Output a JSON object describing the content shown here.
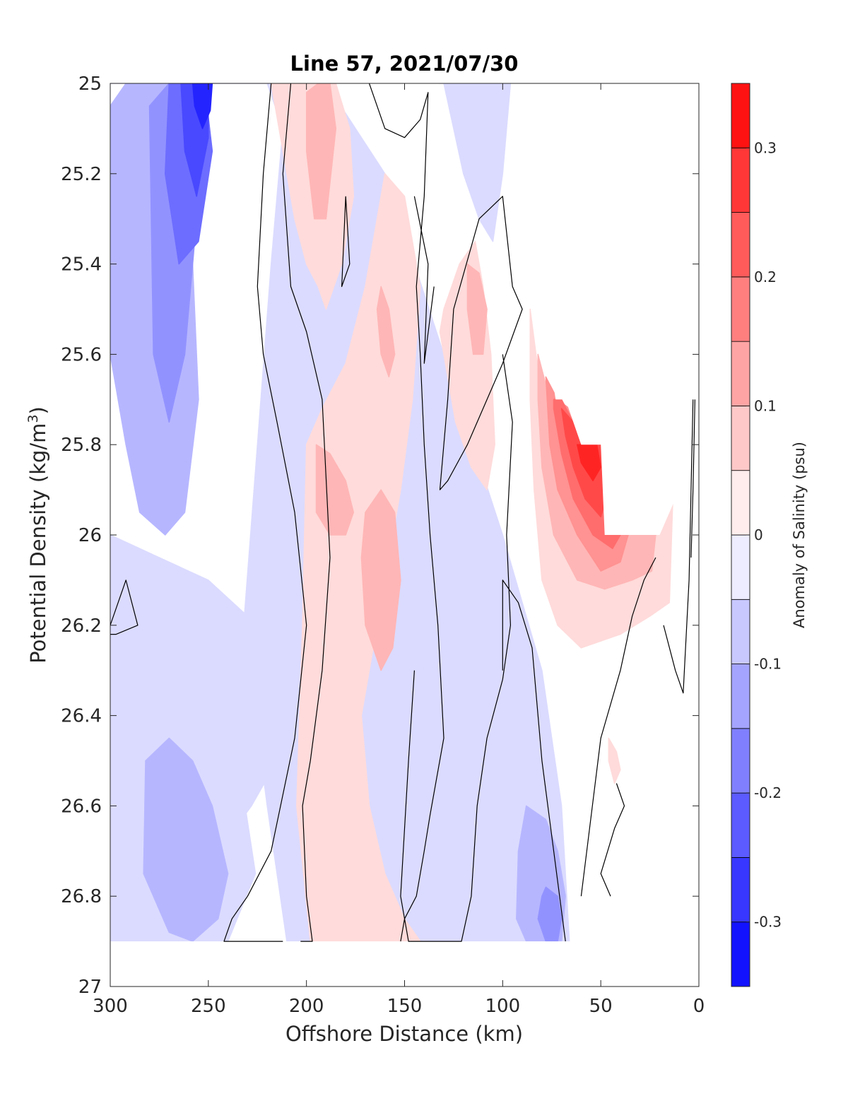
{
  "chart_data": {
    "type": "heatmap",
    "title": "Line 57, 2021/07/30",
    "xlabel": "Offshore Distance (km)",
    "ylabel": "Potential Density (kg/m",
    "ylabel_sup": "3",
    "ylabel_close": ")",
    "x_reversed": true,
    "y_reversed": true,
    "xlim": [
      0,
      300
    ],
    "ylim": [
      25,
      27
    ],
    "xticks": [
      300,
      250,
      200,
      150,
      100,
      50,
      0
    ],
    "xtick_labels": [
      "300",
      "250",
      "200",
      "150",
      "100",
      "50",
      "0"
    ],
    "yticks": [
      25,
      25.2,
      25.4,
      25.6,
      25.8,
      26,
      26.2,
      26.4,
      26.6,
      26.8,
      27
    ],
    "ytick_labels": [
      "25",
      "25.2",
      "25.4",
      "25.6",
      "25.8",
      "26",
      "26.2",
      "26.4",
      "26.6",
      "26.8",
      "27"
    ],
    "colorbar": {
      "label": "Anomaly of Salinity (psu)",
      "range": [
        -0.35,
        0.35
      ],
      "step": 0.05,
      "ticks": [
        -0.3,
        -0.2,
        -0.1,
        0,
        0.1,
        0.2,
        0.3
      ],
      "tick_labels": [
        "-0.3",
        "-0.2",
        "-0.1",
        "0",
        "0.1",
        "0.2",
        "0.3"
      ],
      "colormap": "blue-white-red",
      "color_negative": "#0000ff",
      "color_zero": "#ffffff",
      "color_positive": "#ff0000"
    },
    "regions": [
      {
        "value": -0.05,
        "x": [
          300,
          285,
          268,
          250,
          230,
          220,
          212,
          218,
          225,
          232,
          220,
          210,
          200,
          188,
          170,
          150,
          140,
          130,
          120,
          110,
          100,
          92,
          85,
          78,
          66,
          70,
          80,
          100,
          130,
          160,
          190,
          215,
          240,
          265,
          300
        ],
        "y": [
          25.0,
          25.0,
          25.0,
          25.0,
          25.0,
          25.0,
          25.1,
          25.4,
          25.8,
          26.2,
          26.6,
          26.9,
          26.9,
          26.9,
          26.9,
          26.9,
          26.9,
          26.9,
          26.9,
          26.9,
          26.9,
          26.9,
          26.9,
          26.9,
          26.9,
          26.6,
          26.3,
          26.0,
          25.6,
          25.2,
          25.0,
          25.0,
          25.0,
          25.0,
          25.0
        ]
      },
      {
        "value": -0.05,
        "x": [
          300,
          275,
          250,
          225,
          210,
          200,
          215,
          228,
          245,
          268,
          300
        ],
        "y": [
          26.0,
          26.05,
          26.1,
          26.2,
          26.3,
          26.4,
          26.5,
          26.6,
          26.7,
          26.8,
          26.9
        ]
      },
      {
        "value": -0.05,
        "x": [
          300,
          283,
          265,
          250,
          233,
          226,
          240,
          260,
          285,
          300
        ],
        "y": [
          26.2,
          26.25,
          26.35,
          26.45,
          26.55,
          26.75,
          26.9,
          26.9,
          26.9,
          26.9
        ]
      },
      {
        "value": -0.05,
        "x": [
          140,
          132,
          122,
          118,
          116,
          122,
          135,
          145,
          150,
          145,
          140
        ],
        "y": [
          26.6,
          26.55,
          26.5,
          26.55,
          26.7,
          26.85,
          26.9,
          26.9,
          26.75,
          26.65,
          26.6
        ]
      },
      {
        "value": -0.05,
        "x": [
          135,
          130,
          124,
          122,
          126,
          133,
          139,
          140,
          137,
          135
        ],
        "y": [
          26.15,
          26.2,
          26.3,
          26.4,
          26.5,
          26.55,
          26.45,
          26.3,
          26.2,
          26.15
        ]
      },
      {
        "value": -0.05,
        "x": [
          130,
          125,
          120,
          112,
          105,
          100,
          96,
          100,
          108,
          118,
          128,
          132,
          130
        ],
        "y": [
          25.0,
          25.1,
          25.2,
          25.3,
          25.35,
          25.2,
          25.0,
          25.0,
          25.0,
          25.0,
          25.0,
          25.0,
          25.0
        ]
      },
      {
        "value": -0.1,
        "x": [
          300,
          292,
          282,
          270,
          262,
          258,
          255,
          262,
          272,
          285,
          292,
          300
        ],
        "y": [
          25.05,
          25.0,
          25.0,
          25.0,
          25.1,
          25.4,
          25.7,
          25.95,
          26.0,
          25.95,
          25.8,
          25.6
        ]
      },
      {
        "value": -0.1,
        "x": [
          282,
          270,
          258,
          248,
          240,
          245,
          258,
          270,
          283
        ],
        "y": [
          26.5,
          26.45,
          26.5,
          26.6,
          26.75,
          26.85,
          26.9,
          26.88,
          26.75
        ]
      },
      {
        "value": -0.1,
        "x": [
          88,
          78,
          72,
          68,
          70,
          78,
          88,
          93,
          92,
          88
        ],
        "y": [
          26.6,
          26.63,
          26.7,
          26.8,
          26.9,
          26.9,
          26.9,
          26.85,
          26.7,
          26.6
        ]
      },
      {
        "value": -0.15,
        "x": [
          280,
          270,
          262,
          255,
          256,
          262,
          270,
          278
        ],
        "y": [
          25.05,
          25.0,
          25.0,
          25.05,
          25.3,
          25.6,
          25.75,
          25.6
        ]
      },
      {
        "value": -0.15,
        "x": [
          78,
          72,
          70,
          72,
          78,
          82,
          80,
          78
        ],
        "y": [
          26.78,
          26.8,
          26.85,
          26.9,
          26.9,
          26.85,
          26.8,
          26.78
        ]
      },
      {
        "value": -0.2,
        "x": [
          270,
          262,
          252,
          248,
          255,
          265,
          272
        ],
        "y": [
          25.0,
          25.0,
          25.0,
          25.15,
          25.35,
          25.4,
          25.2
        ]
      },
      {
        "value": -0.25,
        "x": [
          264,
          256,
          250,
          250,
          256,
          262
        ],
        "y": [
          25.0,
          25.0,
          25.0,
          25.12,
          25.25,
          25.15
        ]
      },
      {
        "value": -0.3,
        "x": [
          258,
          252,
          248,
          249,
          253,
          257
        ],
        "y": [
          25.0,
          25.0,
          25.0,
          25.06,
          25.1,
          25.05
        ]
      },
      {
        "value": 0.05,
        "x": [
          218,
          208,
          196,
          185,
          178,
          176,
          182,
          190,
          194,
          200,
          206,
          210,
          214,
          218
        ],
        "y": [
          25.0,
          25.0,
          25.0,
          25.0,
          25.1,
          25.25,
          25.4,
          25.5,
          25.45,
          25.4,
          25.3,
          25.2,
          25.1,
          25.0
        ]
      },
      {
        "value": 0.05,
        "x": [
          200,
          192,
          180,
          170,
          160,
          150,
          142,
          146,
          152,
          160,
          168,
          172,
          170,
          168,
          160,
          150,
          142,
          138,
          144,
          150,
          158,
          170,
          182,
          192,
          198,
          205,
          202,
          200
        ],
        "y": [
          25.8,
          25.72,
          25.62,
          25.45,
          25.2,
          25.25,
          25.45,
          25.7,
          25.9,
          26.1,
          26.3,
          26.4,
          26.5,
          26.6,
          26.75,
          26.85,
          26.9,
          26.9,
          26.9,
          26.9,
          26.9,
          26.9,
          26.9,
          26.9,
          26.9,
          26.6,
          26.2,
          25.8
        ]
      },
      {
        "value": 0.05,
        "x": [
          130,
          122,
          114,
          110,
          106,
          104,
          108,
          116,
          124,
          130,
          132,
          130
        ],
        "y": [
          25.5,
          25.4,
          25.35,
          25.45,
          25.6,
          25.8,
          25.9,
          25.85,
          25.75,
          25.6,
          25.55,
          25.5
        ]
      },
      {
        "value": 0.05,
        "x": [
          86,
          80,
          70,
          58,
          42,
          28,
          18,
          12,
          15,
          25,
          40,
          60,
          72,
          80,
          84,
          86
        ],
        "y": [
          25.5,
          25.7,
          25.7,
          25.8,
          26.0,
          26.0,
          25.95,
          25.75,
          26.15,
          26.18,
          26.22,
          26.25,
          26.2,
          26.1,
          25.9,
          25.7
        ]
      },
      {
        "value": 0.05,
        "x": [
          46,
          42,
          40,
          43,
          46
        ],
        "y": [
          26.45,
          26.48,
          26.52,
          26.55,
          26.5
        ]
      },
      {
        "value": 0.1,
        "x": [
          200,
          194,
          188,
          185,
          190,
          196,
          200
        ],
        "y": [
          25.02,
          25.0,
          25.0,
          25.1,
          25.3,
          25.3,
          25.15
        ]
      },
      {
        "value": 0.1,
        "x": [
          195,
          188,
          180,
          176,
          180,
          188,
          195
        ],
        "y": [
          25.8,
          25.82,
          25.88,
          25.95,
          26.0,
          26.0,
          25.95
        ]
      },
      {
        "value": 0.1,
        "x": [
          170,
          162,
          155,
          152,
          156,
          162,
          170,
          172
        ],
        "y": [
          25.95,
          25.9,
          25.95,
          26.1,
          26.25,
          26.3,
          26.2,
          26.05
        ]
      },
      {
        "value": 0.1,
        "x": [
          162,
          158,
          155,
          158,
          162,
          164
        ],
        "y": [
          25.45,
          25.5,
          25.6,
          25.65,
          25.6,
          25.5
        ]
      },
      {
        "value": 0.1,
        "x": [
          118,
          112,
          108,
          110,
          115,
          118
        ],
        "y": [
          25.4,
          25.42,
          25.5,
          25.6,
          25.6,
          25.5
        ]
      },
      {
        "value": 0.1,
        "x": [
          82,
          76,
          70,
          58,
          44,
          32,
          22,
          24,
          34,
          48,
          62,
          74,
          80,
          82
        ],
        "y": [
          25.6,
          25.7,
          25.7,
          25.8,
          26.0,
          26.0,
          26.0,
          26.08,
          26.1,
          26.12,
          26.1,
          26.0,
          25.85,
          25.7
        ]
      },
      {
        "value": 0.15,
        "x": [
          78,
          72,
          66,
          58,
          46,
          36,
          40,
          50,
          62,
          72,
          76,
          78
        ],
        "y": [
          25.65,
          25.7,
          25.72,
          25.8,
          26.0,
          26.0,
          26.06,
          26.08,
          26.0,
          25.9,
          25.8,
          25.65
        ]
      },
      {
        "value": 0.2,
        "x": [
          74,
          70,
          64,
          56,
          46,
          40,
          44,
          54,
          64,
          70,
          74
        ],
        "y": [
          25.7,
          25.7,
          25.75,
          25.8,
          25.95,
          26.0,
          26.03,
          26.0,
          25.92,
          25.82,
          25.72
        ]
      },
      {
        "value": 0.25,
        "x": [
          70,
          64,
          58,
          50,
          46,
          50,
          58,
          64,
          68
        ],
        "y": [
          25.72,
          25.75,
          25.8,
          25.8,
          25.9,
          25.96,
          25.92,
          25.85,
          25.78
        ]
      },
      {
        "value": 0.3,
        "x": [
          62,
          58,
          52,
          50,
          54,
          60
        ],
        "y": [
          25.8,
          25.8,
          25.8,
          25.85,
          25.88,
          25.84
        ]
      }
    ],
    "nodata_mask": {
      "x": [
        88,
        80,
        73,
        68,
        60,
        50,
        48,
        40,
        20,
        0,
        0,
        88
      ],
      "y": [
        25.48,
        25.5,
        25.7,
        25.7,
        25.8,
        25.8,
        26.0,
        26.0,
        26.0,
        25.8,
        25.0,
        25.0
      ]
    },
    "bottom_cutoff": 26.9,
    "zero_contours": [
      {
        "x": [
          218,
          222,
          225,
          222,
          215,
          206,
          200,
          206,
          218,
          230,
          238,
          242,
          230,
          220,
          212
        ],
        "y": [
          25.0,
          25.2,
          25.45,
          25.6,
          25.75,
          25.95,
          26.2,
          26.45,
          26.7,
          26.8,
          26.85,
          26.9,
          26.9,
          26.9,
          26.9
        ]
      },
      {
        "x": [
          208,
          212,
          208,
          200,
          192,
          188,
          192,
          198,
          202,
          200,
          197,
          200,
          203
        ],
        "y": [
          25.0,
          25.2,
          25.45,
          25.55,
          25.7,
          26.05,
          26.3,
          26.5,
          26.6,
          26.8,
          26.9,
          26.9,
          26.9
        ]
      },
      {
        "x": [
          168,
          160,
          150,
          142,
          138,
          140,
          144,
          142,
          140,
          137,
          133,
          130,
          137,
          140,
          144,
          150,
          152
        ],
        "y": [
          25.0,
          25.1,
          25.12,
          25.08,
          25.02,
          25.25,
          25.45,
          25.6,
          25.8,
          26.0,
          26.2,
          26.45,
          26.62,
          26.7,
          26.8,
          26.85,
          26.9
        ]
      },
      {
        "x": [
          145,
          138,
          140,
          135
        ],
        "y": [
          25.25,
          25.4,
          25.62,
          25.45
        ]
      },
      {
        "x": [
          125,
          112,
          100,
          95,
          90,
          100,
          118,
          128,
          132,
          128,
          125
        ],
        "y": [
          25.5,
          25.3,
          25.25,
          25.45,
          25.5,
          25.62,
          25.8,
          25.88,
          25.9,
          25.7,
          25.5
        ]
      },
      {
        "x": [
          100,
          95,
          98,
          96,
          100,
          108,
          113,
          116,
          121,
          132,
          148,
          152,
          148,
          145
        ],
        "y": [
          25.6,
          25.75,
          26.0,
          26.2,
          26.32,
          26.45,
          26.6,
          26.8,
          26.9,
          26.9,
          26.9,
          26.8,
          26.5,
          26.3
        ]
      },
      {
        "x": [
          68,
          80,
          85,
          92,
          100,
          100
        ],
        "y": [
          26.9,
          26.5,
          26.25,
          26.15,
          26.1,
          26.3
        ]
      },
      {
        "x": [
          42,
          38,
          43,
          50,
          45
        ],
        "y": [
          26.55,
          26.6,
          26.65,
          26.75,
          26.8
        ]
      },
      {
        "x": [
          22,
          28,
          34,
          40,
          50,
          60
        ],
        "y": [
          26.05,
          26.1,
          26.18,
          26.3,
          26.45,
          26.8
        ]
      },
      {
        "x": [
          18,
          12,
          8,
          5,
          3
        ],
        "y": [
          26.2,
          26.3,
          26.35,
          26.1,
          25.7
        ]
      },
      {
        "x": [
          4,
          3,
          2
        ],
        "y": [
          26.05,
          25.9,
          25.7
        ]
      },
      {
        "x": [
          300,
          292,
          286,
          297,
          300
        ],
        "y": [
          26.2,
          26.1,
          26.2,
          26.22,
          26.22
        ]
      },
      {
        "x": [
          180,
          178,
          182,
          180
        ],
        "y": [
          25.25,
          25.4,
          25.45,
          25.25
        ]
      }
    ]
  }
}
